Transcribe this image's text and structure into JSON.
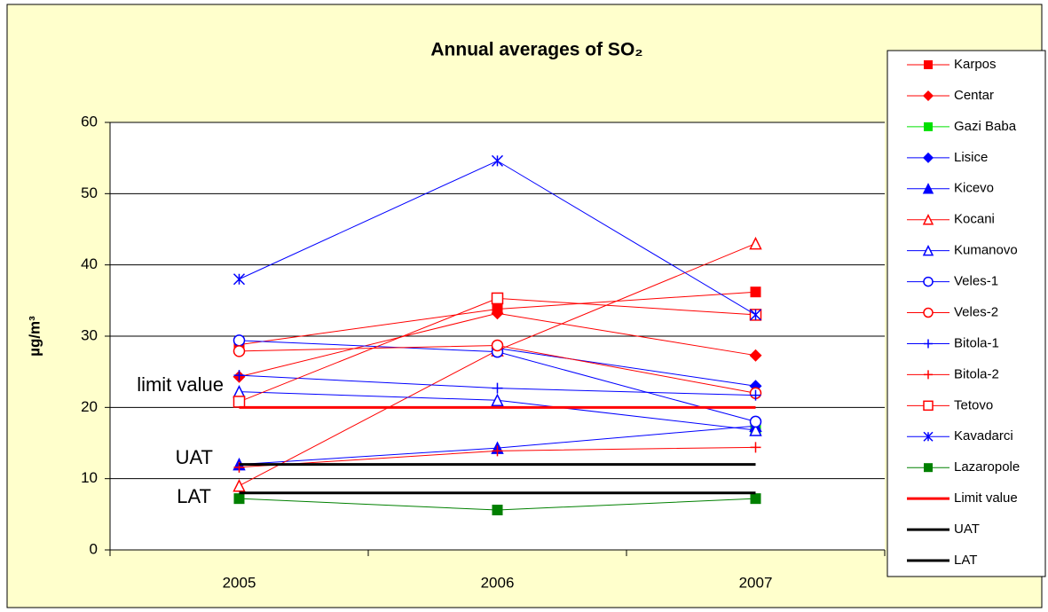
{
  "chart_data": {
    "type": "line",
    "title": "Annual averages of SO₂",
    "y_label": "µg/m³",
    "categories": [
      "2005",
      "2006",
      "2007"
    ],
    "ylim": [
      0,
      60
    ],
    "yticks": [
      0,
      10,
      20,
      30,
      40,
      50,
      60
    ],
    "grid": true,
    "annotations": [
      "limit value",
      "UAT",
      "LAT"
    ],
    "series": [
      {
        "name": "Karpos",
        "color": "#ff0000",
        "marker": "square",
        "values": [
          28.8,
          33.8,
          36.2
        ]
      },
      {
        "name": "Centar",
        "color": "#ff0000",
        "marker": "diamond",
        "values": [
          24.3,
          33.2,
          27.3
        ]
      },
      {
        "name": "Gazi Baba",
        "color": "#00e000",
        "marker": "square",
        "values": [
          null,
          null,
          17
        ]
      },
      {
        "name": "Lisice",
        "color": "#0000ff",
        "marker": "diamond",
        "values": [
          null,
          28.3,
          23
        ]
      },
      {
        "name": "Kicevo",
        "color": "#0000ff",
        "marker": "triangle",
        "values": [
          12,
          14.3,
          17.4
        ]
      },
      {
        "name": "Kocani",
        "color": "#ff0000",
        "marker": "triangle-open",
        "values": [
          9,
          28,
          43
        ]
      },
      {
        "name": "Kumanovo",
        "color": "#0000ff",
        "marker": "triangle-open",
        "values": [
          22.2,
          21,
          16.8
        ]
      },
      {
        "name": "Veles-1",
        "color": "#0000ff",
        "marker": "circle-open",
        "values": [
          29.4,
          27.8,
          18
        ]
      },
      {
        "name": "Veles-2",
        "color": "#ff0000",
        "marker": "circle-open",
        "values": [
          27.9,
          28.7,
          22
        ]
      },
      {
        "name": "Bitola-1",
        "color": "#0000ff",
        "marker": "plus",
        "values": [
          24.5,
          22.7,
          21.7
        ]
      },
      {
        "name": "Bitola-2",
        "color": "#ff0000",
        "marker": "plus",
        "values": [
          11.6,
          13.9,
          14.4
        ]
      },
      {
        "name": "Tetovo",
        "color": "#ff0000",
        "marker": "square-open",
        "values": [
          20.8,
          35.3,
          33
        ]
      },
      {
        "name": "Kavadarci",
        "color": "#0000ff",
        "marker": "star",
        "values": [
          38,
          54.6,
          33
        ]
      },
      {
        "name": "Lazaropole",
        "color": "#008000",
        "marker": "square",
        "values": [
          7.2,
          5.6,
          7.2
        ]
      },
      {
        "name": "Limit value",
        "color": "#ff0000",
        "marker": "none",
        "width": 3,
        "values": [
          20,
          20,
          20
        ]
      },
      {
        "name": "UAT",
        "color": "#000000",
        "marker": "none",
        "width": 3,
        "values": [
          12,
          12,
          12
        ]
      },
      {
        "name": "LAT",
        "color": "#000000",
        "marker": "none",
        "width": 3,
        "values": [
          8,
          8,
          8
        ]
      }
    ]
  }
}
